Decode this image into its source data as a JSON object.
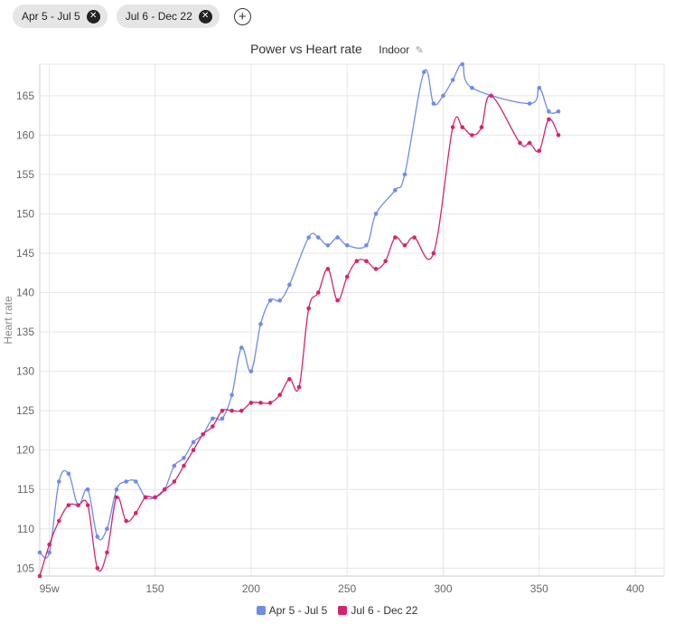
{
  "filters": {
    "chips": [
      {
        "label": "Apr 5 - Jul 5"
      },
      {
        "label": "Jul 6 - Dec 22"
      }
    ],
    "add_icon": "plus-circle-icon",
    "remove_icon": "close-circle-icon"
  },
  "header": {
    "title": "Power vs Heart rate",
    "badge": "Indoor",
    "badge_icon": "pencil-icon"
  },
  "chart_data": {
    "type": "line",
    "title": "Power vs Heart rate",
    "xlabel": "",
    "ylabel": "Heart rate",
    "xlim": [
      90,
      415
    ],
    "ylim": [
      104,
      169
    ],
    "x_ticks": [
      95,
      150,
      200,
      250,
      300,
      350,
      400
    ],
    "x_tick_labels": [
      "95w",
      "150",
      "200",
      "250",
      "300",
      "350",
      "400"
    ],
    "y_ticks": [
      105,
      110,
      115,
      120,
      125,
      130,
      135,
      140,
      145,
      150,
      155,
      160,
      165
    ],
    "grid": true,
    "legend_position": "bottom",
    "series": [
      {
        "name": "Apr 5 - Jul 5",
        "color": "#6f8ce8",
        "points": [
          [
            90,
            107
          ],
          [
            95,
            107
          ],
          [
            100,
            116
          ],
          [
            105,
            117
          ],
          [
            110,
            113
          ],
          [
            115,
            115
          ],
          [
            120,
            109
          ],
          [
            125,
            110
          ],
          [
            130,
            115
          ],
          [
            135,
            116
          ],
          [
            140,
            116
          ],
          [
            145,
            114
          ],
          [
            150,
            114
          ],
          [
            155,
            115
          ],
          [
            160,
            118
          ],
          [
            165,
            119
          ],
          [
            170,
            121
          ],
          [
            175,
            122
          ],
          [
            180,
            124
          ],
          [
            185,
            124
          ],
          [
            190,
            127
          ],
          [
            195,
            133
          ],
          [
            200,
            130
          ],
          [
            205,
            136
          ],
          [
            210,
            139
          ],
          [
            215,
            139
          ],
          [
            220,
            141
          ],
          [
            230,
            147
          ],
          [
            235,
            147
          ],
          [
            240,
            146
          ],
          [
            245,
            147
          ],
          [
            250,
            146
          ],
          [
            260,
            146
          ],
          [
            265,
            150
          ],
          [
            275,
            153
          ],
          [
            280,
            155
          ],
          [
            290,
            168
          ],
          [
            295,
            164
          ],
          [
            300,
            165
          ],
          [
            305,
            167
          ],
          [
            310,
            169
          ],
          [
            315,
            166
          ],
          [
            345,
            164
          ],
          [
            350,
            166
          ],
          [
            355,
            163
          ],
          [
            360,
            163
          ]
        ]
      },
      {
        "name": "Jul 6 - Dec 22",
        "color": "#d6246e",
        "points": [
          [
            90,
            104
          ],
          [
            95,
            108
          ],
          [
            100,
            111
          ],
          [
            105,
            113
          ],
          [
            110,
            113
          ],
          [
            115,
            113
          ],
          [
            120,
            105
          ],
          [
            125,
            107
          ],
          [
            130,
            114
          ],
          [
            135,
            111
          ],
          [
            140,
            112
          ],
          [
            145,
            114
          ],
          [
            150,
            114
          ],
          [
            155,
            115
          ],
          [
            160,
            116
          ],
          [
            165,
            118
          ],
          [
            170,
            120
          ],
          [
            175,
            122
          ],
          [
            180,
            123
          ],
          [
            185,
            125
          ],
          [
            190,
            125
          ],
          [
            195,
            125
          ],
          [
            200,
            126
          ],
          [
            205,
            126
          ],
          [
            210,
            126
          ],
          [
            215,
            127
          ],
          [
            220,
            129
          ],
          [
            225,
            128
          ],
          [
            230,
            138
          ],
          [
            235,
            140
          ],
          [
            240,
            143
          ],
          [
            245,
            139
          ],
          [
            250,
            142
          ],
          [
            255,
            144
          ],
          [
            260,
            144
          ],
          [
            265,
            143
          ],
          [
            270,
            144
          ],
          [
            275,
            147
          ],
          [
            280,
            146
          ],
          [
            285,
            147
          ],
          [
            295,
            145
          ],
          [
            305,
            161
          ],
          [
            310,
            161
          ],
          [
            315,
            160
          ],
          [
            320,
            161
          ],
          [
            325,
            165
          ],
          [
            340,
            159
          ],
          [
            345,
            159
          ],
          [
            350,
            158
          ],
          [
            355,
            162
          ],
          [
            360,
            160
          ]
        ]
      }
    ]
  }
}
